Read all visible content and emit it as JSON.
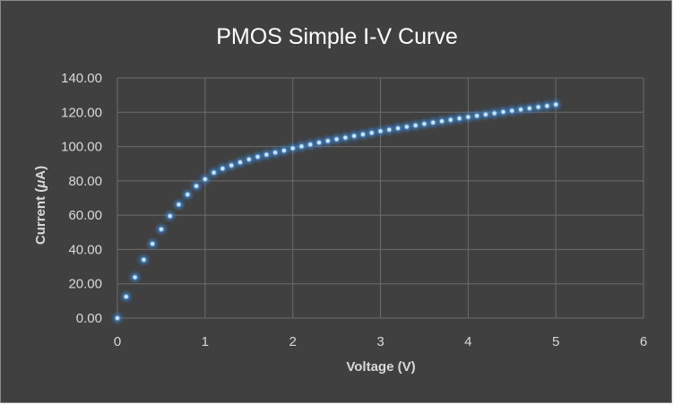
{
  "chart_data": {
    "type": "scatter",
    "title": "PMOS Simple I-V Curve",
    "xlabel": "Voltage (V)",
    "ylabel_prefix": "Current (",
    "ylabel_mu": "μ",
    "ylabel_suffix": "A)",
    "xlim": [
      0,
      6
    ],
    "ylim": [
      0,
      140
    ],
    "x_ticks": [
      0,
      1,
      2,
      3,
      4,
      5,
      6
    ],
    "y_ticks": [
      0,
      20,
      40,
      60,
      80,
      100,
      120,
      140
    ],
    "y_tick_labels": [
      "0.00",
      "20.00",
      "40.00",
      "60.00",
      "80.00",
      "100.00",
      "120.00",
      "140.00"
    ],
    "grid": true,
    "legend": false,
    "series": [
      {
        "x": [
          0,
          0.1,
          0.2,
          0.3,
          0.4,
          0.5,
          0.6,
          0.7,
          0.8,
          0.9,
          1.0,
          1.1,
          1.2,
          1.3,
          1.4,
          1.5,
          1.6,
          1.7,
          1.8,
          1.9,
          2.0,
          2.1,
          2.2,
          2.3,
          2.4,
          2.5,
          2.6,
          2.7,
          2.8,
          2.9,
          3.0,
          3.1,
          3.2,
          3.3,
          3.4,
          3.5,
          3.6,
          3.7,
          3.8,
          3.9,
          4.0,
          4.1,
          4.2,
          4.3,
          4.4,
          4.5,
          4.6,
          4.7,
          4.8,
          4.9,
          5.0
        ],
        "y": [
          0.0,
          12.5,
          23.8,
          34.0,
          43.3,
          51.8,
          59.5,
          66.2,
          72.0,
          77.0,
          81.0,
          84.8,
          87.2,
          89.0,
          90.8,
          92.5,
          94.0,
          95.3,
          96.5,
          97.7,
          99.0,
          100.1,
          101.2,
          102.3,
          103.3,
          104.3,
          105.2,
          106.2,
          107.1,
          108.0,
          109.0,
          109.8,
          110.7,
          111.5,
          112.3,
          113.2,
          114.0,
          114.8,
          115.6,
          116.4,
          117.2,
          117.9,
          118.7,
          119.4,
          120.2,
          120.9,
          121.6,
          122.3,
          123.0,
          123.7,
          124.5
        ],
        "color": "#5b9bd5"
      }
    ],
    "colors": {
      "background": "#404040",
      "gridline": "#6c6c6c",
      "marker_glow": "#3d7dc2",
      "marker_core": "#cfe4f8",
      "text": "#d9d9d9",
      "title": "#ffffff"
    }
  }
}
